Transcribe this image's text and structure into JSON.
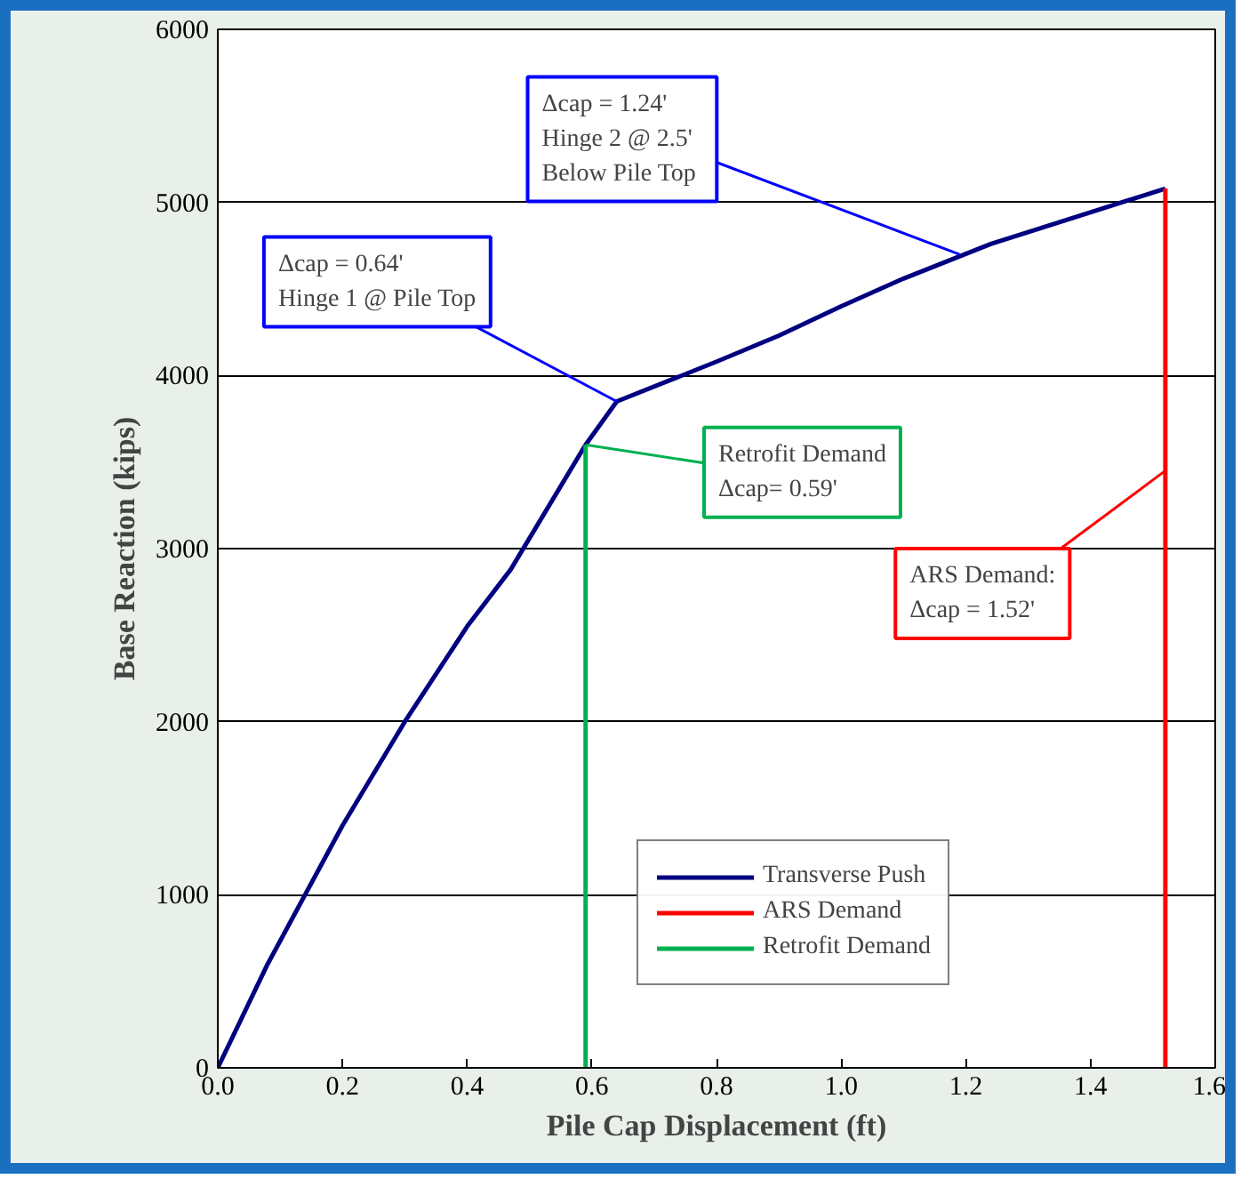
{
  "chart_data": {
    "type": "line",
    "xlabel": "Pile Cap Displacement (ft)",
    "ylabel": "Base Reaction (kips)",
    "xlim": [
      0,
      1.6
    ],
    "ylim": [
      0,
      6000
    ],
    "xticks": [
      {
        "value": 0,
        "label": "0.0"
      },
      {
        "value": 0.2,
        "label": "0.2"
      },
      {
        "value": 0.4,
        "label": "0.4"
      },
      {
        "value": 0.6,
        "label": "0.6"
      },
      {
        "value": 0.8,
        "label": "0.8"
      },
      {
        "value": 1.0,
        "label": "1.0"
      },
      {
        "value": 1.2,
        "label": "1.2"
      },
      {
        "value": 1.4,
        "label": "1.4"
      },
      {
        "value": 1.6,
        "label": "1.6"
      }
    ],
    "yticks": [
      0,
      1000,
      2000,
      3000,
      4000,
      5000,
      6000
    ],
    "grid": "y",
    "legend": "bottom right",
    "marker": "none",
    "line_style": "solid",
    "series": [
      {
        "name": "Transverse Push",
        "color": "#000080",
        "x": [
          0,
          0.08,
          0.2,
          0.3,
          0.4,
          0.47,
          0.59,
          0.64,
          0.8,
          0.9,
          1.0,
          1.1,
          1.24,
          1.52
        ],
        "values": [
          0,
          600,
          1400,
          2000,
          2550,
          2880,
          3600,
          3850,
          4080,
          4230,
          4400,
          4560,
          4760,
          5080
        ]
      },
      {
        "name": "ARS Demand",
        "color": "#ff0000",
        "x": [
          1.52,
          1.52
        ],
        "values": [
          0,
          5080
        ]
      },
      {
        "name": "Retrofit Demand",
        "color": "#00b050",
        "x": [
          0.59,
          0.59
        ],
        "values": [
          0,
          3600
        ]
      }
    ],
    "annotations": [
      {
        "text": "Δcap = 0.64'\nHinge 1 @ Pile Top",
        "x": 0.64,
        "y": 3850
      },
      {
        "text": "Δcap = 1.24'\nHinge 2 @ 2.5'\nBelow  Pile Top",
        "x": 1.19,
        "y": 4700
      },
      {
        "text": "Retrofit Demand\nΔcap= 0.59'",
        "x": 0.59,
        "y": 3600
      },
      {
        "text": "ARS Demand:\nΔcap = 1.52'",
        "x": 1.52,
        "y": 3450
      }
    ]
  }
}
